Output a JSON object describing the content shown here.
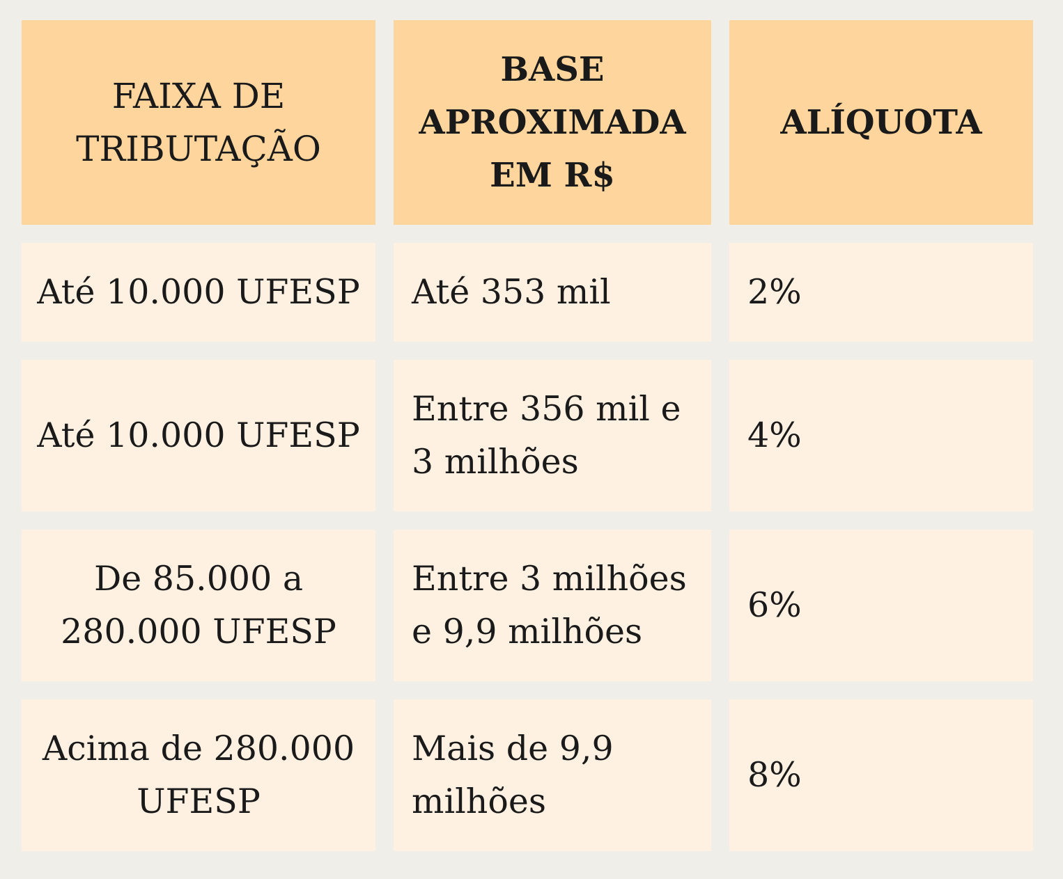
{
  "table": {
    "headers": [
      "FAIXA DE\nTRIBUTAÇÃO",
      "BASE\nAPROXIMADA\nEM R$",
      "ALÍQUOTA"
    ],
    "rows": [
      {
        "faixa": "Até 10.000 UFESP",
        "base": "Até 353 mil",
        "aliquota": "2%"
      },
      {
        "faixa": "Até 10.000 UFESP",
        "base": "Entre 356 mil e\n3 milhões",
        "aliquota": "4%"
      },
      {
        "faixa": "De 85.000 a\n280.000 UFESP",
        "base": "Entre 3 milhões\ne 9,9 milhões",
        "aliquota": "6%"
      },
      {
        "faixa": "Acima de 280.000\nUFESP",
        "base": "Mais de 9,9\nmilhões",
        "aliquota": "8%"
      }
    ]
  },
  "colors": {
    "background": "#efeee9",
    "header_fill": "#fed69d",
    "cell_fill": "#fef1e2",
    "text": "#1a1a1a"
  }
}
